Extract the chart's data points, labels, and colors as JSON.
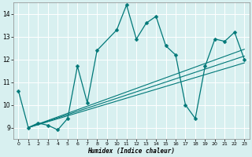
{
  "xlabel": "Humidex (Indice chaleur)",
  "bg_color": "#d8f0f0",
  "line_color": "#007878",
  "grid_color": "#c8e8e8",
  "xlim": [
    -0.5,
    23.5
  ],
  "ylim": [
    8.5,
    14.5
  ],
  "xticks": [
    0,
    1,
    2,
    3,
    4,
    5,
    6,
    7,
    8,
    9,
    10,
    11,
    12,
    13,
    14,
    15,
    16,
    17,
    18,
    19,
    20,
    21,
    22,
    23
  ],
  "yticks": [
    9,
    10,
    11,
    12,
    13,
    14
  ],
  "line1_x": [
    0,
    1,
    2,
    3,
    4,
    5,
    6,
    7,
    8,
    10,
    11,
    12,
    13,
    14,
    15,
    16,
    17,
    18,
    19,
    20,
    21,
    22,
    23
  ],
  "line1_y": [
    10.6,
    9.0,
    9.2,
    9.1,
    8.9,
    9.4,
    11.7,
    10.1,
    12.4,
    13.3,
    14.4,
    12.9,
    13.6,
    13.9,
    12.6,
    12.2,
    10.0,
    9.4,
    11.7,
    12.9,
    12.8,
    13.2,
    12.0
  ],
  "trend1_x": [
    1,
    23
  ],
  "trend1_y": [
    9.0,
    12.15
  ],
  "trend2_x": [
    1,
    23
  ],
  "trend2_y": [
    9.0,
    11.85
  ],
  "trend3_x": [
    1,
    23
  ],
  "trend3_y": [
    9.0,
    12.45
  ],
  "marker_size": 2.5
}
